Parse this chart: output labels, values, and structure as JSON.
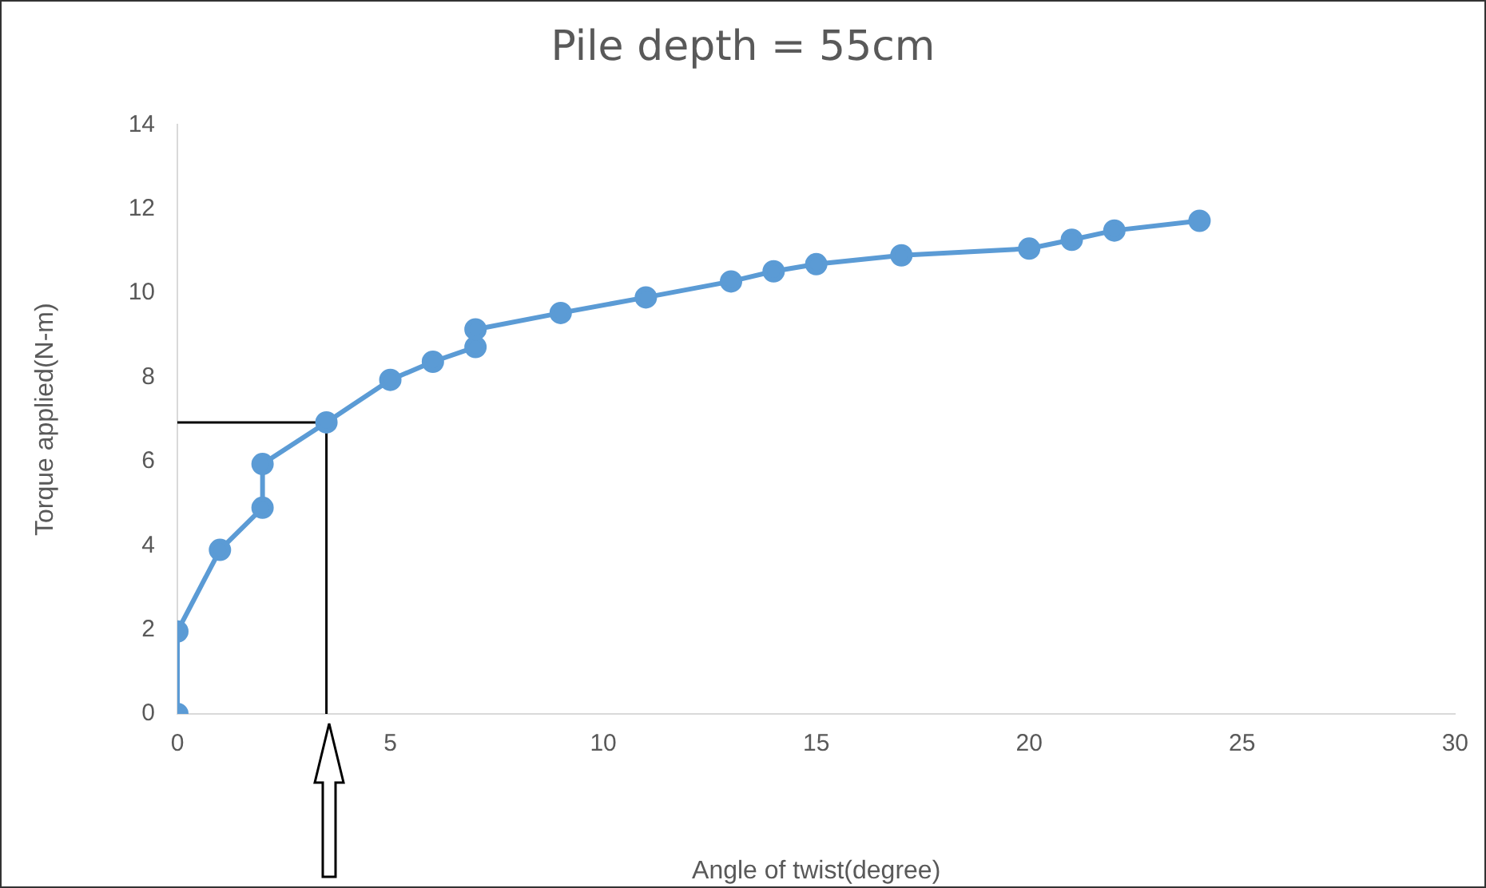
{
  "chart_data": {
    "type": "line",
    "title": "Pile depth = 55cm",
    "xlabel": "Angle of twist(degree)",
    "ylabel": "Torque applied(N-m)",
    "xlim": [
      0,
      30
    ],
    "xticks": [
      0,
      5,
      10,
      15,
      20,
      25,
      30
    ],
    "ylim": [
      0,
      14
    ],
    "yticks": [
      0,
      2,
      4,
      6,
      8,
      10,
      12,
      14
    ],
    "grid": false,
    "legend": false,
    "series": [
      {
        "color": "#5b9bd5",
        "marker": "circle",
        "x": [
          0,
          0,
          1,
          2,
          2,
          3.5,
          5,
          6,
          7,
          7,
          9,
          11,
          13,
          14,
          15,
          17,
          20,
          21,
          22,
          24
        ],
        "values": [
          0,
          1.96,
          3.9,
          4.9,
          5.94,
          6.93,
          7.94,
          8.37,
          8.72,
          9.14,
          9.53,
          9.9,
          10.28,
          10.52,
          10.69,
          10.9,
          11.06,
          11.27,
          11.49,
          11.72
        ]
      },
      {
        "color": "#000000",
        "marker": "none",
        "x": [
          0,
          3.5,
          3.5
        ],
        "values": [
          6.93,
          6.93,
          0
        ]
      }
    ]
  }
}
